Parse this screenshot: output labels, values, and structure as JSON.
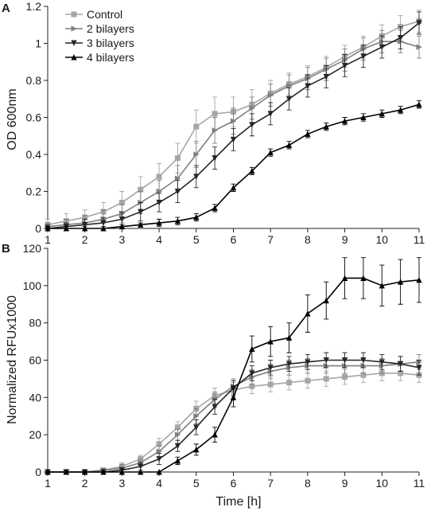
{
  "figure": {
    "x_axis_title": "Time [h]"
  },
  "chart_data": [
    {
      "type": "line",
      "panel_label": "A",
      "ylabel": "OD 600nm",
      "xlabel": "",
      "xlim": [
        1,
        11
      ],
      "ylim": [
        0,
        1.2
      ],
      "x_ticks": [
        "1",
        "2",
        "3",
        "4",
        "5",
        "6",
        "7",
        "8",
        "9",
        "10",
        "11"
      ],
      "y_ticks": [
        "0",
        "0.2",
        "0.4",
        "0.6",
        "0.8",
        "1",
        "1.2"
      ],
      "y_tick_values": [
        0,
        0.2,
        0.4,
        0.6,
        0.8,
        1.0,
        1.2
      ],
      "legend_position": "top-left",
      "error_bars": true,
      "x": [
        1,
        1.5,
        2,
        2.5,
        3,
        3.5,
        4,
        4.5,
        5,
        5.5,
        6,
        6.5,
        7,
        7.5,
        8,
        8.5,
        9,
        9.5,
        10,
        10.5,
        11
      ],
      "series": [
        {
          "name": "Control",
          "marker": "square",
          "color": "#a6a6a6",
          "values": [
            0.02,
            0.04,
            0.06,
            0.09,
            0.14,
            0.21,
            0.28,
            0.38,
            0.55,
            0.62,
            0.63,
            0.67,
            0.73,
            0.78,
            0.82,
            0.87,
            0.93,
            0.98,
            1.04,
            1.09,
            1.12
          ],
          "errors": [
            0.03,
            0.04,
            0.04,
            0.05,
            0.06,
            0.07,
            0.07,
            0.08,
            0.09,
            0.09,
            0.08,
            0.08,
            0.07,
            0.06,
            0.06,
            0.06,
            0.06,
            0.06,
            0.06,
            0.06,
            0.06
          ]
        },
        {
          "name": "2 bilayers",
          "marker": "triangle-right",
          "color": "#7f7f7f",
          "values": [
            0.01,
            0.02,
            0.03,
            0.05,
            0.08,
            0.14,
            0.2,
            0.27,
            0.4,
            0.53,
            0.58,
            0.65,
            0.72,
            0.77,
            0.81,
            0.86,
            0.91,
            0.97,
            1.01,
            1.01,
            0.98
          ],
          "errors": [
            0.02,
            0.03,
            0.04,
            0.05,
            0.05,
            0.06,
            0.06,
            0.07,
            0.07,
            0.07,
            0.07,
            0.06,
            0.06,
            0.06,
            0.06,
            0.06,
            0.06,
            0.06,
            0.06,
            0.06,
            0.06
          ]
        },
        {
          "name": "3 bilayers",
          "marker": "triangle-down",
          "color": "#262626",
          "values": [
            0.0,
            0.01,
            0.02,
            0.03,
            0.05,
            0.09,
            0.14,
            0.2,
            0.28,
            0.38,
            0.48,
            0.56,
            0.62,
            0.7,
            0.77,
            0.82,
            0.88,
            0.93,
            0.98,
            1.03,
            1.11
          ],
          "errors": [
            0.02,
            0.02,
            0.03,
            0.03,
            0.04,
            0.05,
            0.05,
            0.06,
            0.06,
            0.06,
            0.06,
            0.06,
            0.06,
            0.06,
            0.06,
            0.06,
            0.06,
            0.06,
            0.06,
            0.06,
            0.06
          ]
        },
        {
          "name": "4 bilayers",
          "marker": "triangle-up",
          "color": "#000000",
          "values": [
            0.0,
            0.0,
            0.0,
            0.0,
            0.01,
            0.02,
            0.03,
            0.04,
            0.06,
            0.11,
            0.22,
            0.31,
            0.41,
            0.45,
            0.51,
            0.55,
            0.58,
            0.6,
            0.62,
            0.64,
            0.67
          ],
          "errors": [
            0.01,
            0.01,
            0.01,
            0.01,
            0.01,
            0.01,
            0.02,
            0.02,
            0.02,
            0.02,
            0.02,
            0.02,
            0.02,
            0.02,
            0.02,
            0.02,
            0.02,
            0.02,
            0.02,
            0.02,
            0.02
          ]
        }
      ]
    },
    {
      "type": "line",
      "panel_label": "B",
      "ylabel": "Normalized RFUx1000",
      "xlabel": "Time [h]",
      "xlim": [
        1,
        11
      ],
      "ylim": [
        0,
        120
      ],
      "x_ticks": [
        "1",
        "2",
        "3",
        "4",
        "5",
        "6",
        "7",
        "8",
        "9",
        "10",
        "11"
      ],
      "y_ticks": [
        "0",
        "20",
        "40",
        "60",
        "80",
        "100",
        "120"
      ],
      "y_tick_values": [
        0,
        20,
        40,
        60,
        80,
        100,
        120
      ],
      "error_bars": true,
      "x": [
        1,
        1.5,
        2,
        2.5,
        3,
        3.5,
        4,
        4.5,
        5,
        5.5,
        6,
        6.5,
        7,
        7.5,
        8,
        8.5,
        9,
        9.5,
        10,
        10.5,
        11
      ],
      "series": [
        {
          "name": "Control",
          "marker": "square",
          "color": "#a6a6a6",
          "values": [
            0,
            0,
            0,
            1,
            3,
            7,
            15,
            24,
            34,
            41,
            44,
            46,
            47,
            48,
            49,
            50,
            51,
            52,
            53,
            53,
            52
          ],
          "errors": [
            1,
            1,
            1,
            1,
            2,
            2,
            3,
            3,
            4,
            4,
            4,
            4,
            4,
            4,
            4,
            4,
            4,
            4,
            4,
            4,
            4
          ]
        },
        {
          "name": "2 bilayers",
          "marker": "triangle-right",
          "color": "#7f7f7f",
          "values": [
            0,
            0,
            0,
            1,
            2,
            5,
            11,
            20,
            30,
            39,
            46,
            51,
            54,
            56,
            57,
            57,
            57,
            57,
            57,
            58,
            59
          ],
          "errors": [
            1,
            1,
            1,
            1,
            2,
            2,
            3,
            3,
            4,
            4,
            4,
            4,
            4,
            4,
            4,
            4,
            4,
            4,
            4,
            4,
            4
          ]
        },
        {
          "name": "3 bilayers",
          "marker": "triangle-down",
          "color": "#262626",
          "values": [
            0,
            0,
            0,
            0,
            1,
            3,
            7,
            14,
            24,
            35,
            45,
            53,
            56,
            58,
            59,
            60,
            60,
            60,
            59,
            58,
            56
          ],
          "errors": [
            1,
            1,
            1,
            1,
            1,
            2,
            3,
            3,
            4,
            4,
            4,
            4,
            4,
            4,
            4,
            4,
            4,
            4,
            4,
            4,
            4
          ]
        },
        {
          "name": "4 bilayers",
          "marker": "triangle-up",
          "color": "#000000",
          "values": [
            0,
            0,
            0,
            0,
            0,
            0,
            0,
            6,
            12,
            20,
            40,
            66,
            70,
            72,
            85,
            92,
            104,
            104,
            100,
            102,
            103
          ],
          "errors": [
            0,
            0,
            0,
            0,
            0,
            0,
            0,
            2,
            3,
            4,
            5,
            7,
            8,
            8,
            10,
            10,
            11,
            11,
            11,
            12,
            12
          ]
        }
      ]
    }
  ]
}
